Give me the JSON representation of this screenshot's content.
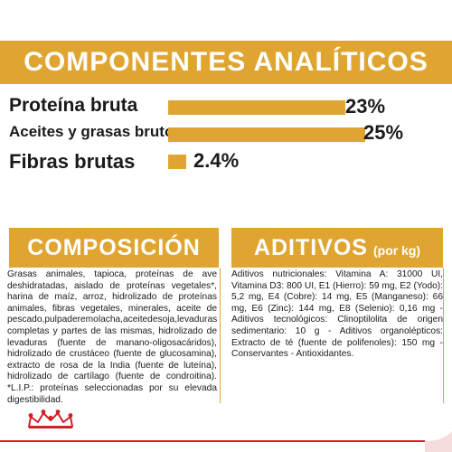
{
  "analytic": {
    "title": "COMPONENTES ANALÍTICOS",
    "rows": [
      {
        "label": "Proteína bruta",
        "value": "23%",
        "fraction": 0.23
      },
      {
        "label": "Aceites y grasas brutos",
        "value": "25%",
        "fraction": 0.25
      },
      {
        "label": "Fibras brutas",
        "value": "2.4%",
        "fraction": 0.024
      }
    ]
  },
  "composition": {
    "title": "COMPOSICIÓN",
    "text": "Grasas animales, tapioca, proteínas de ave deshidratadas, aislado de proteínas vegetales*, harina de maíz, arroz, hidrolizado de proteínas animales, fibras vegetales, minerales, aceite de pescado,pulpaderemolacha,aceitedesoja,levaduras completas y partes de las mismas, hidrolizado de levaduras (fuente de manano-oligosacáridos), hidrolizado de crustáceo (fuente de glucosamina), extracto de rosa de la India (fuente de luteína), hidrolizado de cartílago (fuente de condroitina). *L.I.P.: proteínas seleccionadas por su elevada digestibilidad."
  },
  "additives": {
    "title": "ADITIVOS",
    "subtitle": "(por kg)",
    "text": "Aditivos nutricionales: Vitamina A: 31000 UI, Vitamina D3: 800 UI, E1 (Hierro): 59 mg, E2 (Yodo): 5,2 mg, E4 (Cobre): 14 mg, E5 (Manganeso): 66 mg, E6 (Zinc): 144 mg, E8 (Selenio): 0,16 mg - Aditivos tecnológicos: Clinoptilolita de origen sedimentario: 10 g - Aditivos organolépticos: Extracto de té (fuente de polifenoles): 150 mg - Conservantes - Antioxidantes."
  },
  "colors": {
    "gold": "#e0a530",
    "red": "#d41f26"
  },
  "icons": {
    "crown": "royal-canin-crown-icon"
  }
}
